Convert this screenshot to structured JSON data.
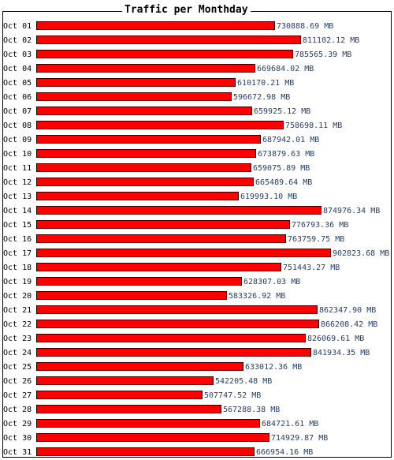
{
  "chart_data": {
    "type": "bar",
    "orientation": "horizontal",
    "title": "Traffic per Monthday",
    "unit": "MB",
    "bar_color": "#ff0000",
    "label_color": "#1f3e73",
    "xlim": [
      0,
      902823.68
    ],
    "categories": [
      "Oct 01",
      "Oct 02",
      "Oct 03",
      "Oct 04",
      "Oct 05",
      "Oct 06",
      "Oct 07",
      "Oct 08",
      "Oct 09",
      "Oct 10",
      "Oct 11",
      "Oct 12",
      "Oct 13",
      "Oct 14",
      "Oct 15",
      "Oct 16",
      "Oct 17",
      "Oct 18",
      "Oct 19",
      "Oct 20",
      "Oct 21",
      "Oct 22",
      "Oct 23",
      "Oct 24",
      "Oct 25",
      "Oct 26",
      "Oct 27",
      "Oct 28",
      "Oct 29",
      "Oct 30",
      "Oct 31"
    ],
    "values": [
      730888.69,
      811102.12,
      785565.39,
      669684.02,
      610170.21,
      596672.98,
      659925.12,
      758698.11,
      687942.01,
      673879.63,
      659075.89,
      665489.64,
      619993.1,
      874976.34,
      776793.36,
      763759.75,
      902823.68,
      751443.27,
      628307.03,
      583326.92,
      862347.9,
      866208.42,
      826069.61,
      841934.35,
      633012.36,
      542205.48,
      507747.52,
      567288.38,
      684721.61,
      714929.87,
      666954.16
    ],
    "value_labels": [
      "730888.69 MB",
      "811102.12 MB",
      "785565.39 MB",
      "669684.02 MB",
      "610170.21 MB",
      "596672.98 MB",
      "659925.12 MB",
      "758698.11 MB",
      "687942.01 MB",
      "673879.63 MB",
      "659075.89 MB",
      "665489.64 MB",
      "619993.10 MB",
      "874976.34 MB",
      "776793.36 MB",
      "763759.75 MB",
      "902823.68 MB",
      "751443.27 MB",
      "628307.03 MB",
      "583326.92 MB",
      "862347.90 MB",
      "866208.42 MB",
      "826069.61 MB",
      "841934.35 MB",
      "633012.36 MB",
      "542205.48 MB",
      "507747.52 MB",
      "567288.38 MB",
      "684721.61 MB",
      "714929.87 MB",
      "666954.16 MB"
    ]
  }
}
